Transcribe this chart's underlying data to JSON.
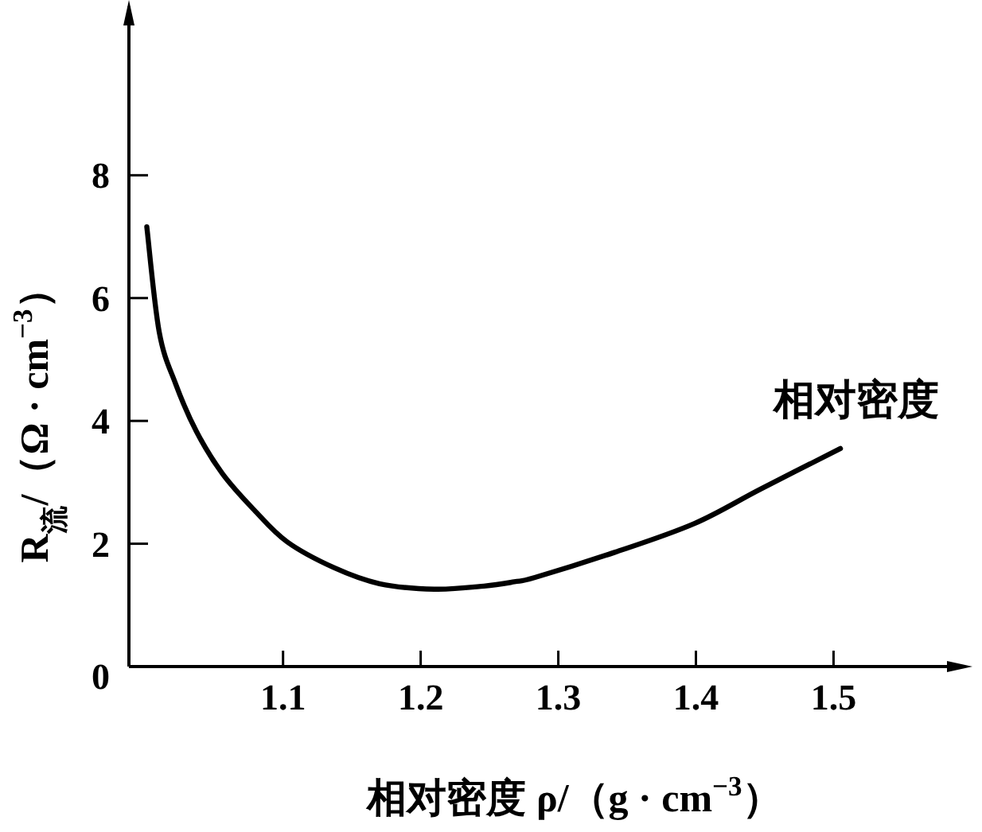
{
  "chart_data": {
    "type": "line",
    "xlabel": "相对密度 ρ/（g · cm$^{−3}$）",
    "ylabel": "R$_{流}$/（Ω · cm$^{−3}$）",
    "series": [
      {
        "name": "相对密度",
        "color": "#000000",
        "x": [
          1.001,
          1.01,
          1.022,
          1.037,
          1.056,
          1.079,
          1.103,
          1.137,
          1.17,
          1.21,
          1.246,
          1.268,
          1.283,
          1.341,
          1.399,
          1.447,
          1.505
        ],
        "values": [
          7.16,
          5.45,
          4.6,
          3.83,
          3.14,
          2.55,
          2.03,
          1.61,
          1.35,
          1.26,
          1.31,
          1.38,
          1.45,
          1.86,
          2.33,
          2.89,
          3.55
        ]
      }
    ],
    "xlim": [
      0.988,
      1.594
    ],
    "xticks": [
      1.1,
      1.2,
      1.3,
      1.4,
      1.5
    ],
    "ylim": [
      0,
      10.75
    ],
    "yticks": [
      0,
      2,
      4,
      6,
      8
    ],
    "marker": "none",
    "line_style": "solid"
  }
}
